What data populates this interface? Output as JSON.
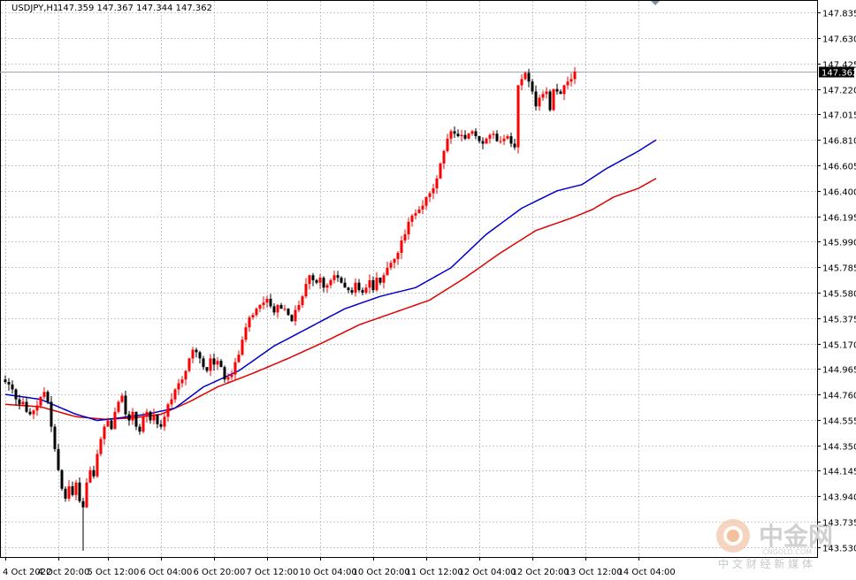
{
  "header": {
    "symbol": "USDJPY,H1",
    "ohlc": "147.359 147.367 147.344 147.362"
  },
  "current_price": "147.362",
  "watermark": {
    "name": "中金网",
    "site": "CNGOLD.COM",
    "tagline": "中 文 财 经 新 媒 体"
  },
  "colors": {
    "bull": "#ff0000",
    "bear": "#000000",
    "ma_fast": "#0000c8",
    "ma_slow": "#e00000",
    "grid": "#c8c8c8",
    "price_line": "#a0a8b8",
    "price_tag": "#000000"
  },
  "icons": {
    "scroll_marker": "triangle-down-icon",
    "watermark_logo": "cngold-logo-icon"
  },
  "chart_data": {
    "type": "candlestick",
    "ylim": [
      143.45,
      147.93
    ],
    "y_ticks": [
      "147.835",
      "147.630",
      "147.425",
      "147.220",
      "147.015",
      "146.810",
      "146.605",
      "146.400",
      "146.195",
      "145.990",
      "145.785",
      "145.580",
      "145.375",
      "145.170",
      "144.965",
      "144.760",
      "144.555",
      "144.350",
      "144.145",
      "143.940",
      "143.735",
      "143.530"
    ],
    "x_ticks": [
      {
        "label": "4 Oct 2022",
        "bar": 0
      },
      {
        "label": "4 Oct 20:00",
        "bar": 15
      },
      {
        "label": "5 Oct 12:00",
        "bar": 29
      },
      {
        "label": "6 Oct 04:00",
        "bar": 44
      },
      {
        "label": "6 Oct 20:00",
        "bar": 59
      },
      {
        "label": "7 Oct 12:00",
        "bar": 74
      },
      {
        "label": "10 Oct 04:00",
        "bar": 89
      },
      {
        "label": "10 Oct 20:00",
        "bar": 104
      },
      {
        "label": "11 Oct 12:00",
        "bar": 119
      },
      {
        "label": "12 Oct 04:00",
        "bar": 134
      },
      {
        "label": "12 Oct 20:00",
        "bar": 149
      },
      {
        "label": "13 Oct 12:00",
        "bar": 164
      },
      {
        "label": "14 Oct 04:00",
        "bar": 179
      }
    ],
    "candles_anchor_close": [
      144.86,
      144.84,
      144.8,
      144.72,
      144.68,
      144.7,
      144.62,
      144.6,
      144.63,
      144.67,
      144.74,
      144.78,
      144.7,
      144.5,
      144.32,
      144.15,
      144.0,
      143.92,
      144.02,
      143.95,
      144.05,
      143.9,
      143.85,
      144.05,
      144.15,
      144.1,
      144.28,
      144.4,
      144.5,
      144.55,
      144.48,
      144.62,
      144.7,
      144.75,
      144.6,
      144.55,
      144.62,
      144.5,
      144.46,
      144.58,
      144.62,
      144.55,
      144.6,
      144.52,
      144.5,
      144.58,
      144.68,
      144.72,
      144.8,
      144.85,
      144.88,
      144.95,
      145.05,
      145.12,
      145.1,
      145.05,
      144.98,
      144.95,
      145.05,
      145.0,
      145.03,
      144.98,
      144.88,
      144.9,
      144.92,
      145.02,
      145.08,
      145.2,
      145.3,
      145.38,
      145.4,
      145.45,
      145.48,
      145.5,
      145.53,
      145.47,
      145.42,
      145.48,
      145.45,
      145.45,
      145.4,
      145.35,
      145.44,
      145.48,
      145.55,
      145.65,
      145.72,
      145.68,
      145.66,
      145.7,
      145.62,
      145.64,
      145.68,
      145.72,
      145.7,
      145.66,
      145.62,
      145.6,
      145.58,
      145.66,
      145.6,
      145.58,
      145.62,
      145.68,
      145.6,
      145.7,
      145.66,
      145.72,
      145.78,
      145.82,
      145.85,
      145.9,
      146.0,
      146.05,
      146.15,
      146.2,
      146.22,
      146.25,
      146.28,
      146.35,
      146.38,
      146.42,
      146.5,
      146.62,
      146.72,
      146.82,
      146.88,
      146.86,
      146.84,
      146.85,
      146.82,
      146.86,
      146.88,
      146.84,
      146.8,
      146.78,
      146.82,
      146.85,
      146.86,
      146.8,
      146.8,
      146.82,
      146.84,
      146.78,
      146.75,
      147.25,
      147.3,
      147.35,
      147.28,
      147.2,
      147.08,
      147.15,
      147.18,
      147.2,
      147.05,
      147.22,
      147.2,
      147.18,
      147.25,
      147.28,
      147.3,
      147.36
    ],
    "ma_fast_anchor": [
      [
        0,
        144.76
      ],
      [
        10,
        144.72
      ],
      [
        20,
        144.6
      ],
      [
        26,
        144.55
      ],
      [
        32,
        144.57
      ],
      [
        40,
        144.6
      ],
      [
        48,
        144.65
      ],
      [
        56,
        144.82
      ],
      [
        66,
        144.95
      ],
      [
        76,
        145.15
      ],
      [
        86,
        145.3
      ],
      [
        96,
        145.45
      ],
      [
        106,
        145.55
      ],
      [
        116,
        145.62
      ],
      [
        126,
        145.78
      ],
      [
        136,
        146.05
      ],
      [
        146,
        146.26
      ],
      [
        156,
        146.4
      ],
      [
        163,
        146.45
      ],
      [
        170,
        146.58
      ],
      [
        179,
        146.72
      ],
      [
        184,
        146.81
      ]
    ],
    "ma_slow_anchor": [
      [
        0,
        144.68
      ],
      [
        10,
        144.66
      ],
      [
        20,
        144.58
      ],
      [
        28,
        144.56
      ],
      [
        36,
        144.57
      ],
      [
        44,
        144.6
      ],
      [
        52,
        144.7
      ],
      [
        60,
        144.82
      ],
      [
        70,
        144.93
      ],
      [
        80,
        145.05
      ],
      [
        90,
        145.18
      ],
      [
        100,
        145.32
      ],
      [
        110,
        145.42
      ],
      [
        120,
        145.52
      ],
      [
        130,
        145.7
      ],
      [
        140,
        145.9
      ],
      [
        150,
        146.08
      ],
      [
        160,
        146.18
      ],
      [
        166,
        146.25
      ],
      [
        172,
        146.35
      ],
      [
        179,
        146.42
      ],
      [
        184,
        146.5
      ]
    ],
    "bar_count": 185
  }
}
